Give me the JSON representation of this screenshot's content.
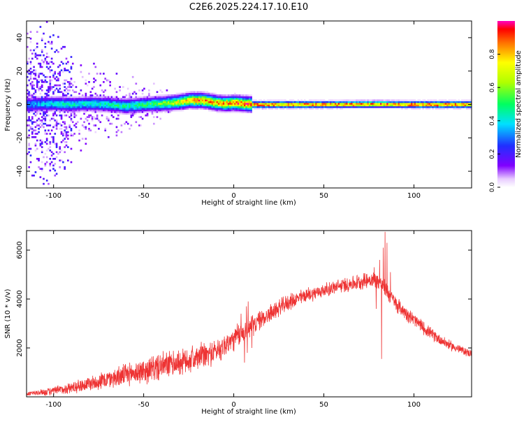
{
  "title": "C2E6.2025.224.17.10.E10",
  "chart_data": [
    {
      "type": "heatmap",
      "xlabel": "Height of straight line (km)",
      "ylabel": "Frequency (Hz)",
      "xlim": [
        -115,
        132
      ],
      "ylim": [
        -50,
        50
      ],
      "xticks": [
        -100,
        -50,
        0,
        50,
        100
      ],
      "yticks": [
        -40,
        -20,
        0,
        20,
        40
      ],
      "colorbar": {
        "label": "Normalized spectral amplitude",
        "range": [
          0,
          1
        ],
        "ticks": [
          "0.0",
          "0.2",
          "0.4",
          "0.6",
          "0.8"
        ]
      },
      "ridge": [
        [
          -115,
          0
        ],
        [
          -100,
          0.5
        ],
        [
          -90,
          0
        ],
        [
          -80,
          0.5
        ],
        [
          -70,
          0
        ],
        [
          -60,
          -1
        ],
        [
          -50,
          0
        ],
        [
          -40,
          0.5
        ],
        [
          -30,
          1.5
        ],
        [
          -25,
          2.5
        ],
        [
          -18,
          2.5
        ],
        [
          -15,
          2
        ],
        [
          -10,
          1
        ],
        [
          -5,
          0.5
        ],
        [
          0,
          1
        ],
        [
          5,
          0.5
        ],
        [
          10,
          0
        ],
        [
          50,
          0
        ],
        [
          80,
          0.2
        ],
        [
          100,
          0
        ],
        [
          132,
          0
        ]
      ],
      "strength": [
        [
          -115,
          0.35
        ],
        [
          -95,
          0.45
        ],
        [
          -80,
          0.45
        ],
        [
          -60,
          0.5
        ],
        [
          -45,
          0.55
        ],
        [
          -30,
          0.75
        ],
        [
          -20,
          0.9
        ],
        [
          -10,
          0.85
        ],
        [
          0,
          0.9
        ],
        [
          10,
          0.95
        ],
        [
          80,
          0.95
        ],
        [
          132,
          0.95
        ]
      ],
      "noise_envelope": [
        [
          -115,
          50
        ],
        [
          -100,
          50
        ],
        [
          -95,
          40
        ],
        [
          -85,
          28
        ],
        [
          -70,
          22
        ],
        [
          -50,
          15
        ],
        [
          -35,
          9
        ],
        [
          -20,
          4
        ],
        [
          0,
          3
        ],
        [
          40,
          2
        ],
        [
          132,
          2
        ]
      ],
      "grid": false
    },
    {
      "type": "line",
      "xlabel": "Height of straight line (km)",
      "ylabel": "SNR (10 * v/v)",
      "xlim": [
        -115,
        132
      ],
      "ylim": [
        0,
        6800
      ],
      "xticks": [
        -100,
        -50,
        0,
        50,
        100
      ],
      "yticks": [
        2000,
        4000,
        6000
      ],
      "color": "#ee3333",
      "trend": [
        [
          -115,
          120
        ],
        [
          -100,
          230
        ],
        [
          -90,
          380
        ],
        [
          -80,
          550
        ],
        [
          -70,
          720
        ],
        [
          -60,
          900
        ],
        [
          -50,
          1050
        ],
        [
          -40,
          1250
        ],
        [
          -30,
          1400
        ],
        [
          -20,
          1580
        ],
        [
          -10,
          1850
        ],
        [
          0,
          2350
        ],
        [
          10,
          2900
        ],
        [
          20,
          3400
        ],
        [
          30,
          3850
        ],
        [
          40,
          4150
        ],
        [
          50,
          4350
        ],
        [
          60,
          4550
        ],
        [
          70,
          4700
        ],
        [
          75,
          4800
        ],
        [
          80,
          4750
        ],
        [
          85,
          4350
        ],
        [
          90,
          3800
        ],
        [
          100,
          3150
        ],
        [
          110,
          2550
        ],
        [
          120,
          2100
        ],
        [
          132,
          1750
        ]
      ],
      "spread": [
        [
          -115,
          100
        ],
        [
          -90,
          280
        ],
        [
          -60,
          520
        ],
        [
          -40,
          650
        ],
        [
          -20,
          600
        ],
        [
          0,
          560
        ],
        [
          20,
          420
        ],
        [
          50,
          320
        ],
        [
          80,
          400
        ],
        [
          100,
          330
        ],
        [
          132,
          180
        ]
      ],
      "spikes": [
        [
          -26,
          1900
        ],
        [
          -23,
          2100
        ],
        [
          -18,
          2250
        ],
        [
          -10,
          2000
        ],
        [
          2,
          3000
        ],
        [
          4,
          3400
        ],
        [
          7,
          3700
        ],
        [
          8,
          3900
        ],
        [
          9,
          3100
        ],
        [
          78,
          5300
        ],
        [
          81,
          5600
        ],
        [
          83,
          6100
        ],
        [
          84,
          6750
        ],
        [
          85,
          6300
        ],
        [
          87,
          5100
        ]
      ],
      "dips": [
        [
          6,
          1400
        ],
        [
          7.5,
          1800
        ],
        [
          10,
          2000
        ],
        [
          79,
          3600
        ],
        [
          82,
          1550
        ],
        [
          86,
          3900
        ]
      ],
      "grid": false
    }
  ]
}
